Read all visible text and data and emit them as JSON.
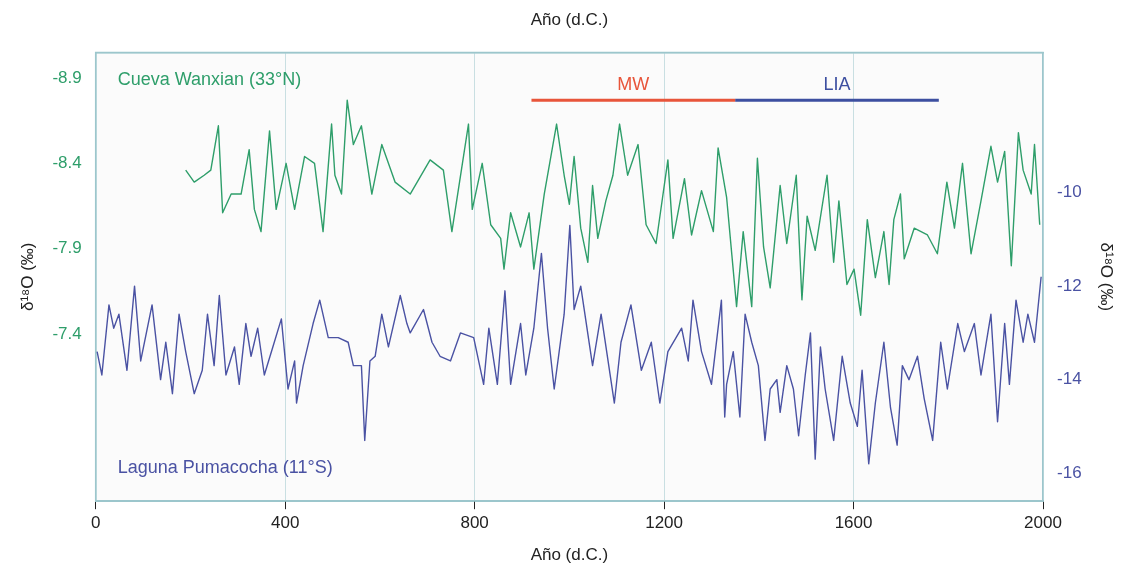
{
  "chart_data": {
    "type": "line",
    "xlabel": "Año (d.C.)",
    "x2label": "Año (d.C.)",
    "ylabel": "δ¹⁸O (‰)",
    "y2label": "δ¹⁸O (‰)",
    "xlim": [
      0,
      2000
    ],
    "xticks": [
      0,
      400,
      800,
      1200,
      1600,
      2000
    ],
    "ylim": [
      -6.42,
      -9.05
    ],
    "yticks": [
      -8.9,
      -8.4,
      -7.9,
      -7.4
    ],
    "y2lim": [
      -16.6,
      -7
    ],
    "y2ticks": [
      -10,
      -12,
      -14,
      -16
    ],
    "grid": "x",
    "legend": false,
    "marker": "none",
    "line_style": "solid",
    "series": [
      {
        "name": "MW",
        "color": "#e8553a",
        "axis": "y",
        "x": [
          920,
          1350
        ],
        "values": [
          -8.77,
          -8.77
        ]
      },
      {
        "name": "LIA",
        "color": "#3d4fa0",
        "axis": "y",
        "x": [
          1350,
          1780
        ],
        "values": [
          -8.77,
          -8.77
        ]
      },
      {
        "name": "Cueva Wanxian (33°N)",
        "color": "#2e9e6a",
        "axis": "y",
        "x": [
          190,
          208,
          229,
          243,
          259,
          268,
          286,
          307,
          324,
          335,
          349,
          367,
          381,
          402,
          420,
          441,
          462,
          480,
          498,
          505,
          519,
          531,
          544,
          561,
          583,
          604,
          632,
          664,
          706,
          734,
          752,
          787,
          795,
          816,
          834,
          855,
          862,
          876,
          897,
          915,
          925,
          947,
          961,
          973,
          989,
          1000,
          1010,
          1024,
          1039,
          1049,
          1060,
          1077,
          1092,
          1106,
          1123,
          1145,
          1162,
          1183,
          1208,
          1219,
          1243,
          1258,
          1279,
          1304,
          1314,
          1332,
          1353,
          1367,
          1385,
          1397,
          1410,
          1424,
          1445,
          1459,
          1479,
          1491,
          1502,
          1519,
          1544,
          1558,
          1569,
          1586,
          1601,
          1615,
          1629,
          1646,
          1664,
          1675,
          1685,
          1699,
          1707,
          1728,
          1756,
          1777,
          1797,
          1813,
          1830,
          1848,
          1869,
          1890,
          1904,
          1919,
          1933,
          1948,
          1958,
          1975,
          1982,
          1993
        ],
        "values": [
          -8.36,
          -8.29,
          -8.33,
          -8.36,
          -8.62,
          -8.11,
          -8.22,
          -8.22,
          -8.48,
          -8.13,
          -8.0,
          -8.59,
          -8.13,
          -8.4,
          -8.13,
          -8.44,
          -8.4,
          -8.0,
          -8.63,
          -8.33,
          -8.22,
          -8.77,
          -8.51,
          -8.62,
          -8.22,
          -8.51,
          -8.29,
          -8.22,
          -8.42,
          -8.36,
          -8.0,
          -8.63,
          -8.13,
          -8.4,
          -8.04,
          -7.96,
          -7.78,
          -8.11,
          -7.91,
          -8.11,
          -7.78,
          -8.22,
          -8.44,
          -8.63,
          -8.33,
          -8.16,
          -8.44,
          -8.02,
          -7.82,
          -8.27,
          -7.96,
          -8.18,
          -8.33,
          -8.63,
          -8.33,
          -8.51,
          -8.04,
          -7.93,
          -8.42,
          -7.96,
          -8.31,
          -7.98,
          -8.24,
          -8.0,
          -8.49,
          -8.2,
          -7.56,
          -8.0,
          -7.56,
          -8.43,
          -7.91,
          -7.67,
          -8.27,
          -7.93,
          -8.33,
          -7.6,
          -8.09,
          -7.89,
          -8.33,
          -7.82,
          -8.18,
          -7.69,
          -7.78,
          -7.51,
          -8.07,
          -7.73,
          -8.0,
          -7.69,
          -8.07,
          -8.22,
          -7.84,
          -8.02,
          -7.98,
          -7.87,
          -8.29,
          -8.02,
          -8.4,
          -7.87,
          -8.18,
          -8.5,
          -8.29,
          -8.47,
          -7.8,
          -8.58,
          -8.36,
          -8.22,
          -8.51,
          -8.04
        ]
      },
      {
        "name": "Laguna Pumacocha (11°S)",
        "color": "#4a52a3",
        "axis": "y2",
        "x": [
          3,
          13,
          28,
          38,
          49,
          66,
          82,
          95,
          119,
          137,
          148,
          162,
          176,
          190,
          208,
          225,
          236,
          250,
          261,
          275,
          293,
          303,
          317,
          328,
          342,
          356,
          374,
          392,
          406,
          420,
          424,
          438,
          459,
          473,
          491,
          512,
          533,
          544,
          561,
          568,
          579,
          590,
          604,
          618,
          643,
          657,
          664,
          692,
          710,
          727,
          749,
          770,
          798,
          819,
          830,
          848,
          864,
          876,
          897,
          908,
          925,
          941,
          954,
          968,
          989,
          1001,
          1010,
          1024,
          1049,
          1067,
          1095,
          1109,
          1130,
          1152,
          1173,
          1191,
          1208,
          1237,
          1251,
          1261,
          1279,
          1300,
          1321,
          1328,
          1332,
          1346,
          1360,
          1371,
          1385,
          1399,
          1413,
          1424,
          1438,
          1445,
          1459,
          1473,
          1484,
          1498,
          1509,
          1519,
          1530,
          1540,
          1558,
          1576,
          1593,
          1608,
          1618,
          1632,
          1646,
          1664,
          1678,
          1692,
          1703,
          1717,
          1735,
          1749,
          1767,
          1784,
          1798,
          1820,
          1834,
          1855,
          1869,
          1890,
          1904,
          1919,
          1929,
          1943,
          1958,
          1968,
          1982,
          1996
        ],
        "values": [
          -13.4,
          -13.9,
          -12.4,
          -12.9,
          -12.6,
          -13.8,
          -12.0,
          -13.6,
          -12.4,
          -14.0,
          -13.2,
          -14.3,
          -12.6,
          -13.4,
          -14.3,
          -13.8,
          -12.6,
          -13.7,
          -12.2,
          -13.9,
          -13.3,
          -14.1,
          -12.8,
          -13.5,
          -12.9,
          -13.9,
          -13.3,
          -12.7,
          -14.2,
          -13.6,
          -14.5,
          -13.7,
          -12.8,
          -12.3,
          -13.1,
          -13.1,
          -13.2,
          -13.7,
          -13.7,
          -15.3,
          -13.6,
          -13.5,
          -12.6,
          -13.3,
          -12.2,
          -12.8,
          -13.0,
          -12.5,
          -13.2,
          -13.5,
          -13.6,
          -13.0,
          -13.1,
          -14.1,
          -12.9,
          -14.1,
          -12.1,
          -14.1,
          -12.8,
          -13.9,
          -12.9,
          -11.3,
          -12.9,
          -14.2,
          -12.6,
          -10.7,
          -12.5,
          -12.0,
          -13.7,
          -12.6,
          -14.5,
          -13.2,
          -12.4,
          -13.8,
          -13.2,
          -14.5,
          -13.4,
          -12.9,
          -13.6,
          -12.3,
          -13.4,
          -14.1,
          -12.3,
          -14.8,
          -14.1,
          -13.4,
          -14.8,
          -12.6,
          -13.2,
          -13.7,
          -15.3,
          -14.2,
          -14.0,
          -14.7,
          -13.7,
          -14.2,
          -15.2,
          -13.9,
          -13.0,
          -15.7,
          -13.3,
          -14.2,
          -15.3,
          -13.5,
          -14.5,
          -15.0,
          -13.8,
          -15.8,
          -14.5,
          -13.2,
          -14.6,
          -15.4,
          -13.7,
          -14.0,
          -13.5,
          -14.4,
          -15.3,
          -13.2,
          -14.2,
          -12.8,
          -13.4,
          -12.8,
          -13.9,
          -12.6,
          -14.9,
          -12.8,
          -14.1,
          -12.3,
          -13.2,
          -12.6,
          -13.2,
          -11.8
        ]
      }
    ]
  }
}
